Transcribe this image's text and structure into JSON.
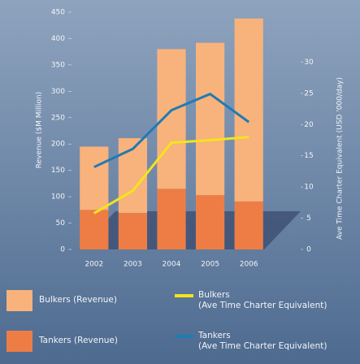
{
  "chart_data": {
    "type": "bar",
    "ylabel": "Revenue ($M Million)",
    "y2label": "Ave Time Charter Equivalent (USD '000/day)",
    "categories": [
      "2002",
      "2003",
      "2004",
      "2005",
      "2006"
    ],
    "series": [
      {
        "name": "Tankers (Revenue)",
        "color": "#ee7d45",
        "type": "bar",
        "values": [
          75,
          69,
          115,
          103,
          91
        ]
      },
      {
        "name": "Bulkers (Revenue)",
        "color": "#f8b27c",
        "type": "bar",
        "values": [
          120,
          142,
          265,
          289,
          347
        ]
      },
      {
        "name": "Bulkers\n(Ave Time Charter Equivalent)",
        "color": "#f3e41c",
        "type": "line",
        "axis": "y2",
        "values": [
          5.8,
          9.4,
          17.1,
          17.5,
          18
        ]
      },
      {
        "name": "Tankers\n(Ave Time Charter Equivalent)",
        "color": "#1f7bb3",
        "type": "line",
        "axis": "y2",
        "values": [
          13.2,
          16.1,
          22.3,
          24.9,
          20.4
        ]
      }
    ],
    "ylim": [
      0,
      450
    ],
    "yticks": [
      0,
      50,
      100,
      150,
      200,
      250,
      300,
      350,
      400,
      450
    ],
    "y2lim": [
      0,
      38
    ],
    "y2ticks": [
      0,
      5,
      10,
      15,
      20,
      25,
      30
    ]
  }
}
